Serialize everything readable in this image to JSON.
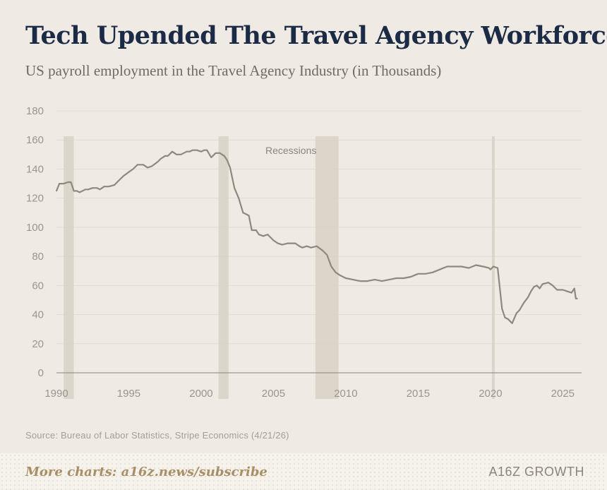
{
  "header": {
    "title": "Tech Upended The Travel Agency Workforce",
    "subtitle": "US payroll employment in the Travel Agency Industry (in Thousands)"
  },
  "source": "Source: Bureau of Labor Statistics, Stripe Economics (4/21/26)",
  "footer": {
    "more": "More charts: a16z.news/subscribe",
    "brand": "A16Z GROWTH"
  },
  "colors": {
    "background": "#efebe4",
    "line": "#8d897f",
    "recession": "#d8d1c5",
    "grid": "#e1dbd0",
    "title": "#1b2a45"
  },
  "chart_data": {
    "type": "line",
    "title": "Tech Upended The Travel Agency Workforce",
    "subtitle": "US payroll employment in the Travel Agency Industry (in Thousands)",
    "xlim": [
      1990,
      2026.3
    ],
    "ylim": [
      0,
      180
    ],
    "yticks": [
      0,
      20,
      40,
      60,
      80,
      100,
      120,
      140,
      160,
      180
    ],
    "xticks": [
      1990,
      1995,
      2000,
      2005,
      2010,
      2015,
      2020,
      2025
    ],
    "grid": true,
    "annotation": "Recessions",
    "recessions": [
      [
        1990.5,
        1991.2
      ],
      [
        2001.2,
        2001.9
      ],
      [
        2007.9,
        2009.5
      ],
      [
        2020.1,
        2020.3
      ]
    ],
    "series": [
      {
        "x": [
          1990.0,
          1990.2,
          1990.5,
          1990.8,
          1991.0,
          1991.2,
          1991.4,
          1991.6,
          1992.0,
          1992.2,
          1992.5,
          1992.8,
          1993.0,
          1993.3,
          1993.6,
          1994.0,
          1994.3,
          1994.6,
          1995.0,
          1995.3,
          1995.6,
          1996.0,
          1996.3,
          1996.6,
          1997.0,
          1997.2,
          1997.5,
          1997.7,
          1998.0,
          1998.3,
          1998.6,
          1999.0,
          1999.2,
          1999.4,
          1999.7,
          2000.0,
          2000.2,
          2000.4,
          2000.7,
          2001.0,
          2001.3,
          2001.6,
          2001.8,
          2002.0,
          2002.3,
          2002.6,
          2002.9,
          2003.1,
          2003.3,
          2003.5,
          2003.8,
          2004.0,
          2004.3,
          2004.6,
          2005.0,
          2005.3,
          2005.6,
          2006.0,
          2006.5,
          2006.8,
          2007.0,
          2007.3,
          2007.6,
          2008.0,
          2008.4,
          2008.7,
          2009.0,
          2009.3,
          2009.6,
          2010.0,
          2010.5,
          2011.0,
          2011.5,
          2012.0,
          2012.5,
          2013.0,
          2013.5,
          2014.0,
          2014.5,
          2015.0,
          2015.5,
          2016.0,
          2016.5,
          2017.0,
          2017.5,
          2018.0,
          2018.5,
          2019.0,
          2019.5,
          2019.9,
          2020.0,
          2020.1,
          2020.2,
          2020.5,
          2020.8,
          2021.0,
          2021.2,
          2021.5,
          2021.8,
          2022.0,
          2022.3,
          2022.6,
          2022.8,
          2023.0,
          2023.2,
          2023.4,
          2023.6,
          2024.0,
          2024.3,
          2024.6,
          2025.0,
          2025.3,
          2025.6,
          2025.8,
          2025.9,
          2026.0
        ],
        "values": [
          125,
          130,
          130,
          131,
          131,
          125,
          125,
          124,
          126,
          126,
          127,
          127,
          126,
          128,
          128,
          129,
          132,
          135,
          138,
          140,
          143,
          143,
          141,
          142,
          145,
          147,
          149,
          149,
          152,
          150,
          150,
          152,
          152,
          153,
          153,
          152,
          153,
          153,
          148,
          151,
          151,
          149,
          146,
          141,
          127,
          120,
          110,
          109,
          108,
          98,
          98,
          95,
          94,
          95,
          91,
          89,
          88,
          89,
          89,
          87,
          86,
          87,
          86,
          87,
          84,
          81,
          73,
          69,
          67,
          65,
          64,
          63,
          63,
          64,
          63,
          64,
          65,
          65,
          66,
          68,
          68,
          69,
          71,
          73,
          73,
          73,
          72,
          74,
          73,
          72,
          71,
          72,
          73,
          72,
          44,
          38,
          37,
          34,
          41,
          43,
          48,
          52,
          56,
          59,
          60,
          58,
          61,
          62,
          60,
          57,
          57,
          56,
          55,
          58,
          51,
          51
        ]
      }
    ]
  }
}
